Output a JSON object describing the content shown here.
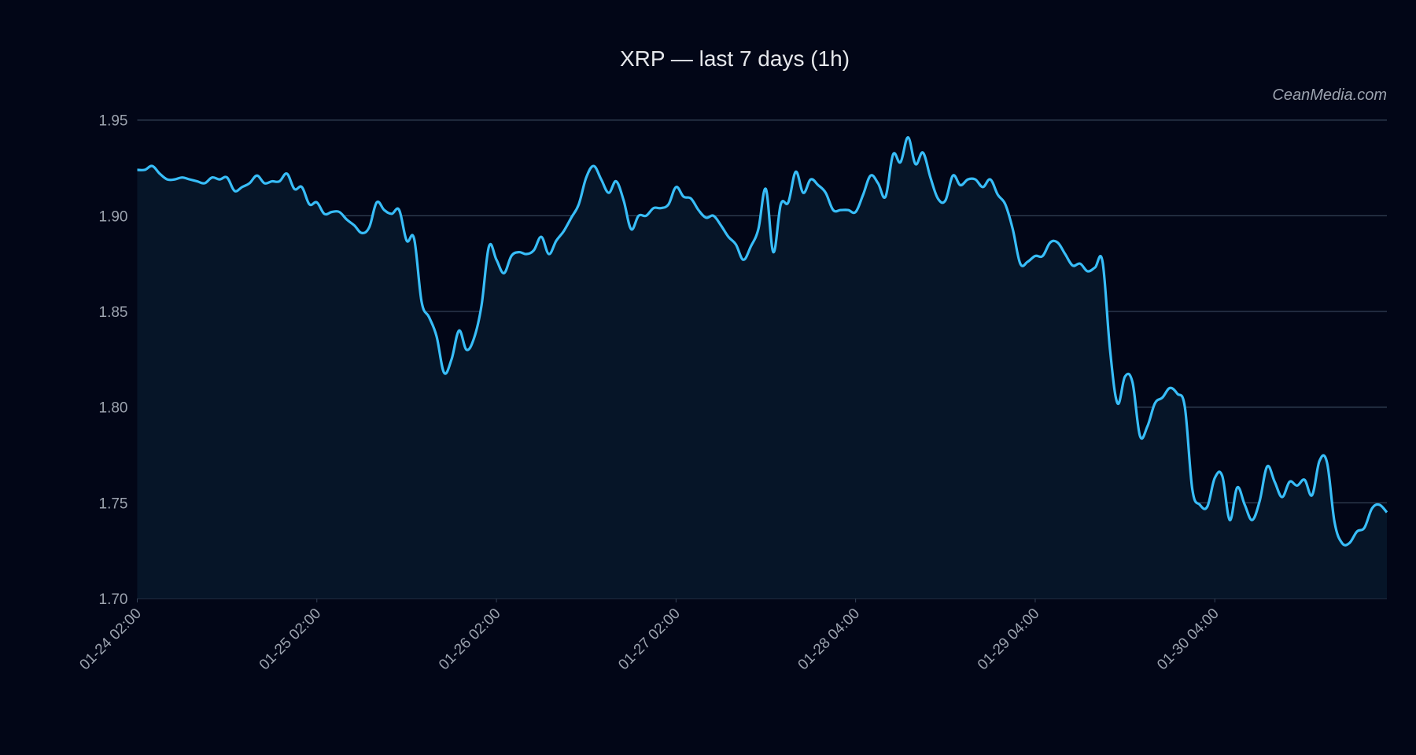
{
  "chart_data": {
    "type": "line",
    "title": "XRP — last 7 days (1h)",
    "watermark": "CeanMedia.com",
    "xlabel": "",
    "ylabel": "",
    "ylim": [
      1.7,
      1.95
    ],
    "yticks": [
      "1.70",
      "1.75",
      "1.80",
      "1.85",
      "1.90",
      "1.95"
    ],
    "xticks": [
      {
        "index": 0,
        "label": "01-24 02:00"
      },
      {
        "index": 24,
        "label": "01-25 02:00"
      },
      {
        "index": 48,
        "label": "01-26 02:00"
      },
      {
        "index": 72,
        "label": "01-27 02:00"
      },
      {
        "index": 96,
        "label": "01-28 04:00"
      },
      {
        "index": 120,
        "label": "01-29 04:00"
      },
      {
        "index": 144,
        "label": "01-30 04:00"
      }
    ],
    "grid": "horizontal",
    "colors": {
      "background": "#020617",
      "line": "#38bdf8",
      "fill": "#061528",
      "grid": "#334155"
    },
    "values": [
      1.924,
      1.924,
      1.926,
      1.922,
      1.919,
      1.919,
      1.92,
      1.919,
      1.918,
      1.917,
      1.92,
      1.919,
      1.92,
      1.913,
      1.915,
      1.917,
      1.921,
      1.917,
      1.918,
      1.918,
      1.922,
      1.914,
      1.915,
      1.906,
      1.907,
      1.901,
      1.902,
      1.902,
      1.898,
      1.895,
      1.891,
      1.894,
      1.907,
      1.903,
      1.901,
      1.903,
      1.887,
      1.888,
      1.855,
      1.847,
      1.837,
      1.818,
      1.825,
      1.84,
      1.83,
      1.836,
      1.853,
      1.884,
      1.877,
      1.87,
      1.879,
      1.881,
      1.88,
      1.882,
      1.889,
      1.88,
      1.887,
      1.892,
      1.899,
      1.906,
      1.92,
      1.926,
      1.919,
      1.912,
      1.918,
      1.908,
      1.893,
      1.9,
      1.9,
      1.904,
      1.904,
      1.906,
      1.915,
      1.91,
      1.909,
      1.903,
      1.899,
      1.9,
      1.895,
      1.889,
      1.885,
      1.877,
      1.884,
      1.893,
      1.914,
      1.881,
      1.906,
      1.907,
      1.923,
      1.912,
      1.919,
      1.916,
      1.912,
      1.903,
      1.903,
      1.903,
      1.902,
      1.911,
      1.921,
      1.917,
      1.91,
      1.932,
      1.928,
      1.941,
      1.927,
      1.933,
      1.92,
      1.909,
      1.908,
      1.921,
      1.916,
      1.919,
      1.919,
      1.915,
      1.919,
      1.911,
      1.906,
      1.893,
      1.875,
      1.876,
      1.879,
      1.879,
      1.886,
      1.886,
      1.88,
      1.874,
      1.875,
      1.871,
      1.873,
      1.876,
      1.83,
      1.802,
      1.816,
      1.813,
      1.785,
      1.79,
      1.802,
      1.805,
      1.81,
      1.807,
      1.8,
      1.757,
      1.749,
      1.748,
      1.763,
      1.764,
      1.741,
      1.758,
      1.749,
      1.741,
      1.751,
      1.769,
      1.761,
      1.753,
      1.761,
      1.759,
      1.762,
      1.754,
      1.772,
      1.771,
      1.74,
      1.729,
      1.729,
      1.735,
      1.737,
      1.747,
      1.749,
      1.745
    ]
  }
}
